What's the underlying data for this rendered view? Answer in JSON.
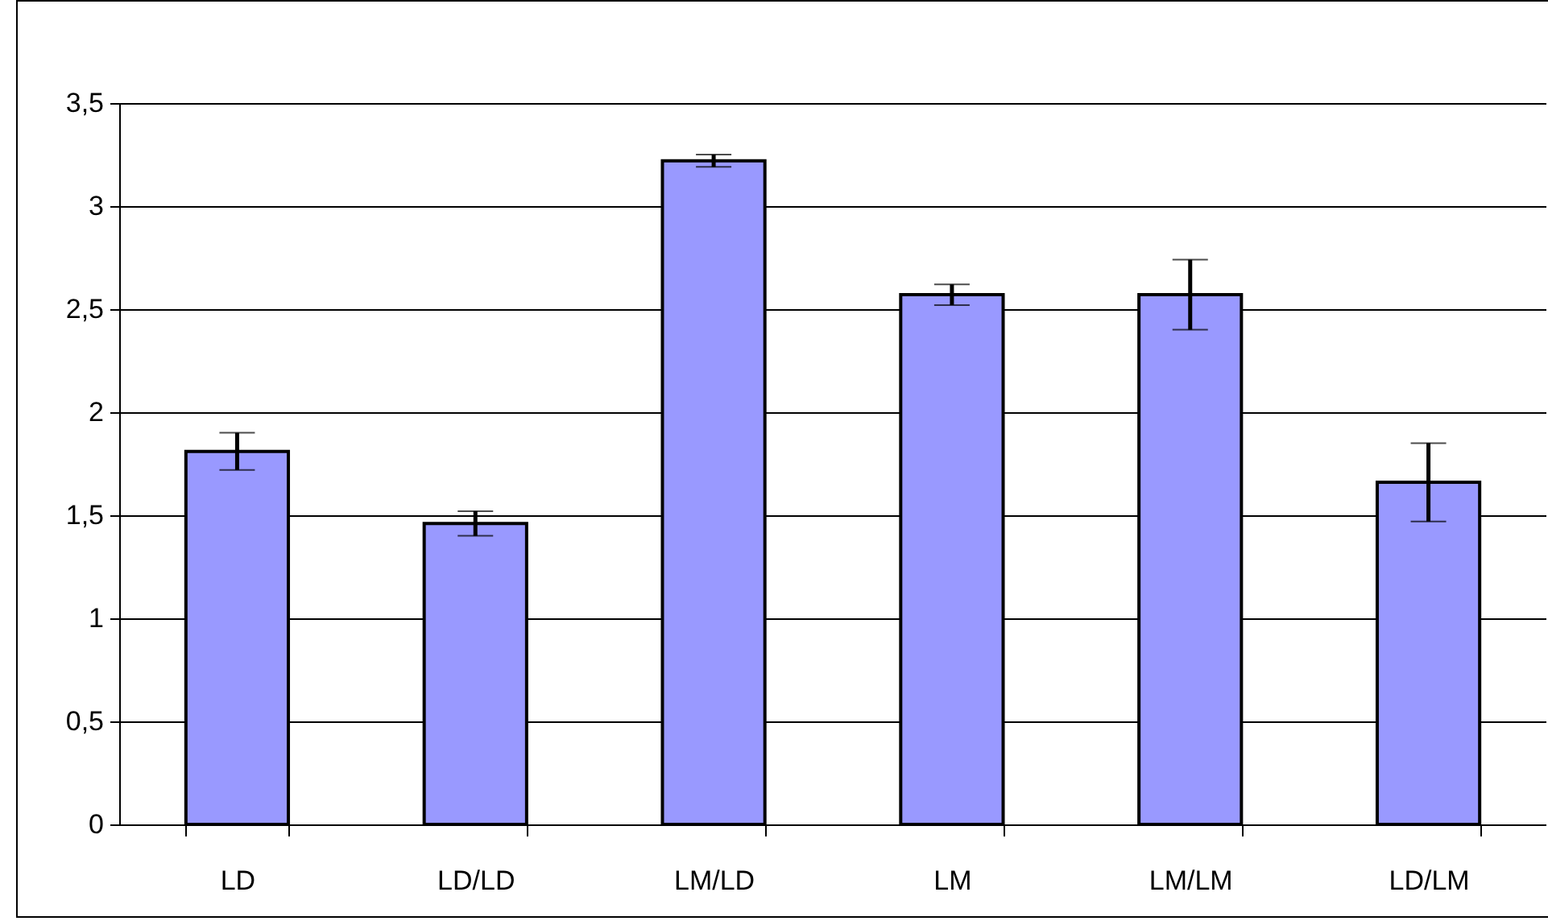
{
  "chart_data": {
    "type": "bar",
    "categories": [
      "LD",
      "LD/LD",
      "LM/LD",
      "LM",
      "LM/LM",
      "LD/LM"
    ],
    "values": [
      1.81,
      1.46,
      3.22,
      2.57,
      2.57,
      1.66
    ],
    "errors": [
      0.09,
      0.06,
      0.03,
      0.05,
      0.17,
      0.19
    ],
    "color": "#9999ff",
    "ylim": [
      0,
      3.5
    ],
    "yticks": [
      0,
      {
        "value": 0.5,
        "label": "0,5"
      },
      1,
      {
        "value": 1.5,
        "label": "1,5"
      },
      2,
      {
        "value": 2.5,
        "label": "2,5"
      },
      3,
      {
        "value": 3.5,
        "label": "3,5"
      }
    ],
    "grid": "y"
  }
}
